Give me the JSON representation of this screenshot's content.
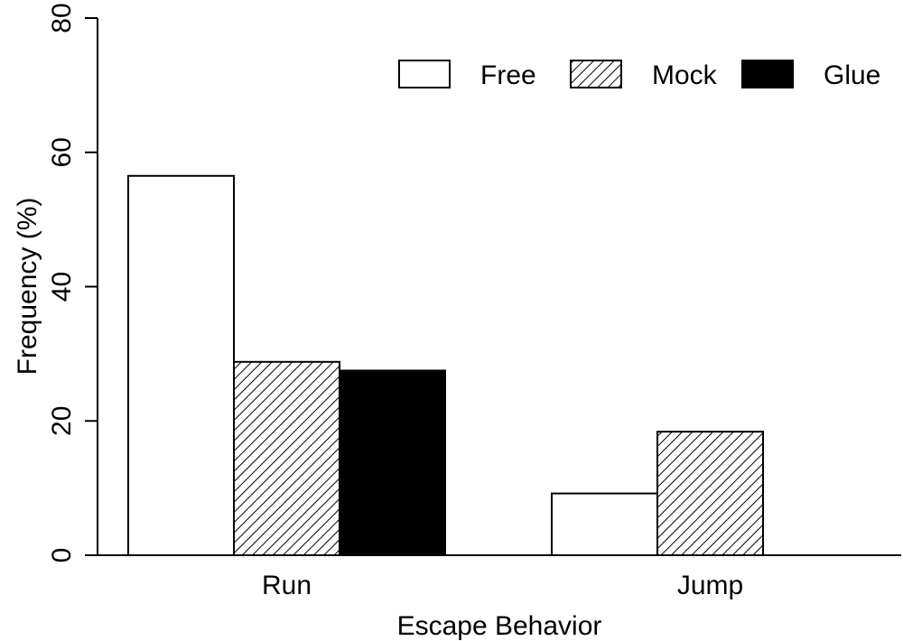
{
  "chart_data": {
    "type": "bar",
    "title": "",
    "xlabel": "Escape Behavior",
    "ylabel": "Frequency (%)",
    "ylim": [
      0,
      80
    ],
    "yticks": [
      0,
      20,
      40,
      60,
      80
    ],
    "categories": [
      "Run",
      "Jump"
    ],
    "series": [
      {
        "name": "Free",
        "values": [
          56.5,
          9.2
        ],
        "fill": "#ffffff",
        "pattern": "none"
      },
      {
        "name": "Mock",
        "values": [
          28.8,
          18.4
        ],
        "fill": "#ffffff",
        "pattern": "diagonal-hatch"
      },
      {
        "name": "Glue",
        "values": [
          27.5,
          0
        ],
        "fill": "#000000",
        "pattern": "none"
      }
    ],
    "legend_position": "top-right",
    "grid": false
  }
}
